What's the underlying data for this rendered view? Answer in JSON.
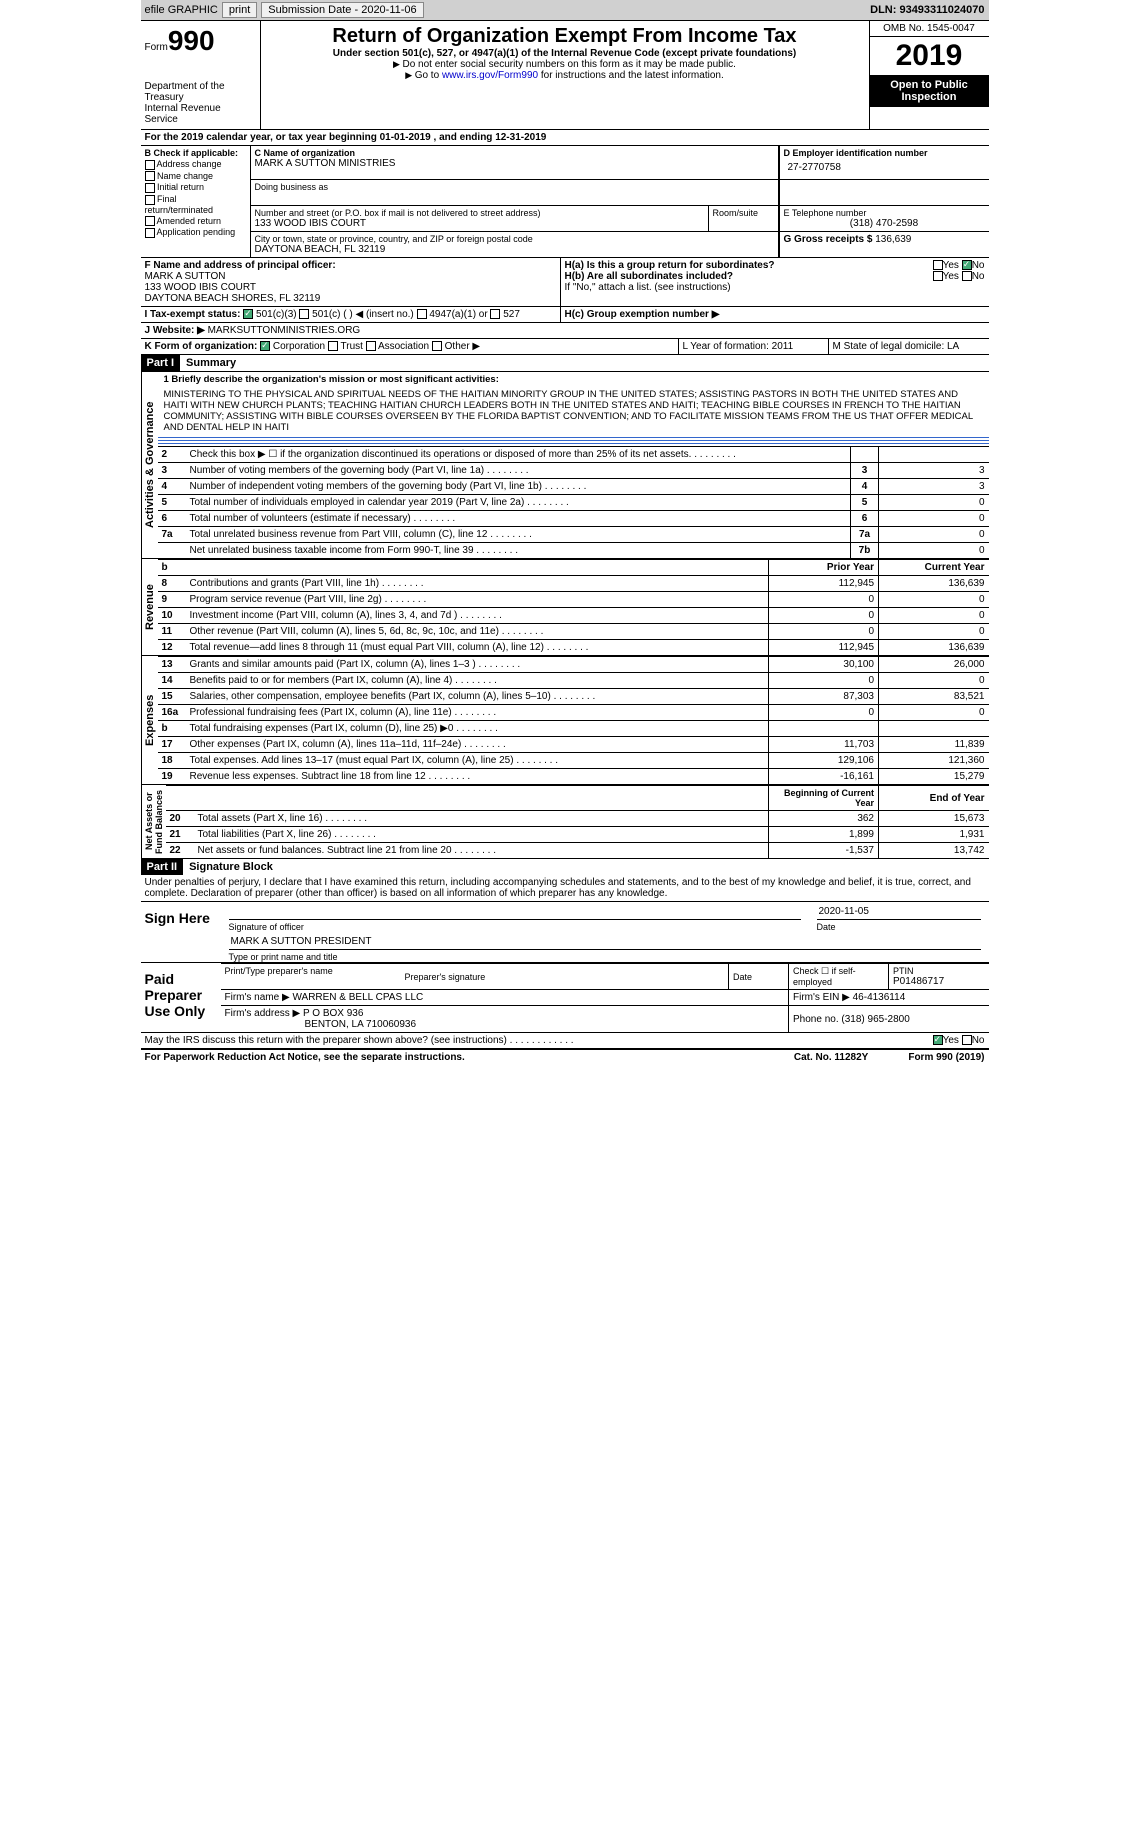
{
  "topbar": {
    "efile": "efile GRAPHIC",
    "print": "print",
    "subdate_label": "Submission Date - ",
    "subdate": "2020-11-06",
    "dln_label": "DLN: ",
    "dln": "93493311024070"
  },
  "header": {
    "form": "Form",
    "num": "990",
    "dept": "Department of the Treasury\nInternal Revenue Service",
    "title": "Return of Organization Exempt From Income Tax",
    "sub": "Under section 501(c), 527, or 4947(a)(1) of the Internal Revenue Code (except private foundations)",
    "note1": "Do not enter social security numbers on this form as it may be made public.",
    "note2_pre": "Go to ",
    "note2_link": "www.irs.gov/Form990",
    "note2_post": " for instructions and the latest information.",
    "omb": "OMB No. 1545-0047",
    "year": "2019",
    "open": "Open to Public Inspection"
  },
  "line_a": "For the 2019 calendar year, or tax year beginning 01-01-2019   , and ending 12-31-2019",
  "box_b": {
    "title": "B Check if applicable:",
    "opts": [
      "Address change",
      "Name change",
      "Initial return",
      "Final return/terminated",
      "Amended return",
      "Application pending"
    ]
  },
  "box_c": {
    "name_lbl": "C Name of organization",
    "name": "MARK A SUTTON MINISTRIES",
    "dba_lbl": "Doing business as",
    "addr_lbl": "Number and street (or P.O. box if mail is not delivered to street address)",
    "room_lbl": "Room/suite",
    "addr": "133 WOOD IBIS COURT",
    "city_lbl": "City or town, state or province, country, and ZIP or foreign postal code",
    "city": "DAYTONA BEACH, FL  32119"
  },
  "box_d": {
    "lbl": "D Employer identification number",
    "val": "27-2770758"
  },
  "box_e": {
    "lbl": "E Telephone number",
    "val": "(318) 470-2598"
  },
  "box_g": {
    "lbl": "G Gross receipts $ ",
    "val": "136,639"
  },
  "box_f": {
    "lbl": "F  Name and address of principal officer:",
    "name": "MARK A SUTTON",
    "addr1": "133 WOOD IBIS COURT",
    "addr2": "DAYTONA BEACH SHORES, FL  32119"
  },
  "box_h": {
    "a": "H(a)  Is this a group return for subordinates?",
    "b": "H(b)  Are all subordinates included?",
    "note": "If \"No,\" attach a list. (see instructions)",
    "c_lbl": "H(c)  Group exemption number ▶",
    "yes": "Yes",
    "no": "No"
  },
  "box_i": "I   Tax-exempt status:",
  "box_j_lbl": "J   Website: ▶",
  "box_j": "MARKSUTTONMINISTRIES.ORG",
  "box_k": "K Form of organization:",
  "k_opts": [
    "Corporation",
    "Trust",
    "Association",
    "Other ▶"
  ],
  "box_l": "L Year of formation: 2011",
  "box_m": "M State of legal domicile: LA",
  "part1": "Part I",
  "part1_t": "Summary",
  "mission_lbl": "1   Briefly describe the organization's mission or most significant activities:",
  "mission": "MINISTERING TO THE PHYSICAL AND SPIRITUAL NEEDS OF THE HAITIAN MINORITY GROUP IN THE UNITED STATES; ASSISTING PASTORS IN BOTH THE UNITED STATES AND HAITI WITH NEW CHURCH PLANTS; TEACHING HAITIAN CHURCH LEADERS BOTH IN THE UNITED STATES AND HAITI; TEACHING BIBLE COURSES IN FRENCH TO THE HAITIAN COMMUNITY; ASSISTING WITH BIBLE COURSES OVERSEEN BY THE FLORIDA BAPTIST CONVENTION; AND TO FACILITATE MISSION TEAMS FROM THE US THAT OFFER MEDICAL AND DENTAL HELP IN HAITI",
  "gov": [
    {
      "n": "2",
      "t": "Check this box ▶ ☐  if the organization discontinued its operations or disposed of more than 25% of its net assets.",
      "b": "",
      "v": ""
    },
    {
      "n": "3",
      "t": "Number of voting members of the governing body (Part VI, line 1a)",
      "b": "3",
      "v": "3"
    },
    {
      "n": "4",
      "t": "Number of independent voting members of the governing body (Part VI, line 1b)",
      "b": "4",
      "v": "3"
    },
    {
      "n": "5",
      "t": "Total number of individuals employed in calendar year 2019 (Part V, line 2a)",
      "b": "5",
      "v": "0"
    },
    {
      "n": "6",
      "t": "Total number of volunteers (estimate if necessary)",
      "b": "6",
      "v": "0"
    },
    {
      "n": "7a",
      "t": "Total unrelated business revenue from Part VIII, column (C), line 12",
      "b": "7a",
      "v": "0"
    },
    {
      "n": "",
      "t": "Net unrelated business taxable income from Form 990-T, line 39",
      "b": "7b",
      "v": "0"
    }
  ],
  "colhdr": {
    "b": "b",
    "py": "Prior Year",
    "cy": "Current Year"
  },
  "rev": [
    {
      "n": "8",
      "t": "Contributions and grants (Part VIII, line 1h)",
      "p": "112,945",
      "c": "136,639"
    },
    {
      "n": "9",
      "t": "Program service revenue (Part VIII, line 2g)",
      "p": "0",
      "c": "0"
    },
    {
      "n": "10",
      "t": "Investment income (Part VIII, column (A), lines 3, 4, and 7d )",
      "p": "0",
      "c": "0"
    },
    {
      "n": "11",
      "t": "Other revenue (Part VIII, column (A), lines 5, 6d, 8c, 9c, 10c, and 11e)",
      "p": "0",
      "c": "0"
    },
    {
      "n": "12",
      "t": "Total revenue—add lines 8 through 11 (must equal Part VIII, column (A), line 12)",
      "p": "112,945",
      "c": "136,639"
    }
  ],
  "exp": [
    {
      "n": "13",
      "t": "Grants and similar amounts paid (Part IX, column (A), lines 1–3 )",
      "p": "30,100",
      "c": "26,000"
    },
    {
      "n": "14",
      "t": "Benefits paid to or for members (Part IX, column (A), line 4)",
      "p": "0",
      "c": "0"
    },
    {
      "n": "15",
      "t": "Salaries, other compensation, employee benefits (Part IX, column (A), lines 5–10)",
      "p": "87,303",
      "c": "83,521"
    },
    {
      "n": "16a",
      "t": "Professional fundraising fees (Part IX, column (A), line 11e)",
      "p": "0",
      "c": "0"
    },
    {
      "n": "b",
      "t": "Total fundraising expenses (Part IX, column (D), line 25) ▶0",
      "p": "",
      "c": ""
    },
    {
      "n": "17",
      "t": "Other expenses (Part IX, column (A), lines 11a–11d, 11f–24e)",
      "p": "11,703",
      "c": "11,839"
    },
    {
      "n": "18",
      "t": "Total expenses. Add lines 13–17 (must equal Part IX, column (A), line 25)",
      "p": "129,106",
      "c": "121,360"
    },
    {
      "n": "19",
      "t": "Revenue less expenses. Subtract line 18 from line 12",
      "p": "-16,161",
      "c": "15,279"
    }
  ],
  "colhdr2": {
    "py": "Beginning of Current Year",
    "cy": "End of Year"
  },
  "net": [
    {
      "n": "20",
      "t": "Total assets (Part X, line 16)",
      "p": "362",
      "c": "15,673"
    },
    {
      "n": "21",
      "t": "Total liabilities (Part X, line 26)",
      "p": "1,899",
      "c": "1,931"
    },
    {
      "n": "22",
      "t": "Net assets or fund balances. Subtract line 21 from line 20",
      "p": "-1,537",
      "c": "13,742"
    }
  ],
  "vtabs": {
    "gov": "Activities & Governance",
    "rev": "Revenue",
    "exp": "Expenses",
    "net": "Net Assets or\nFund Balances"
  },
  "part2": "Part II",
  "part2_t": "Signature Block",
  "perjury": "Under penalties of perjury, I declare that I have examined this return, including accompanying schedules and statements, and to the best of my knowledge and belief, it is true, correct, and complete. Declaration of preparer (other than officer) is based on all information of which preparer has any knowledge.",
  "sign": {
    "here": "Sign Here",
    "sig_lbl": "Signature of officer",
    "date": "2020-11-05",
    "date_lbl": "Date",
    "name": "MARK A SUTTON  PRESIDENT",
    "name_lbl": "Type or print name and title"
  },
  "prep": {
    "title": "Paid Preparer Use Only",
    "pname_lbl": "Print/Type preparer's name",
    "psig_lbl": "Preparer's signature",
    "pdate_lbl": "Date",
    "se_lbl": "Check ☐ if self-employed",
    "ptin_lbl": "PTIN",
    "ptin": "P01486717",
    "firm_lbl": "Firm's name   ▶",
    "firm": "WARREN & BELL CPAS LLC",
    "ein_lbl": "Firm's EIN ▶",
    "ein": "46-4136114",
    "addr_lbl": "Firm's address ▶",
    "addr1": "P O BOX 936",
    "addr2": "BENTON, LA  710060936",
    "phone_lbl": "Phone no.",
    "phone": "(318) 965-2800"
  },
  "discuss": "May the IRS discuss this return with the preparer shown above? (see instructions)",
  "footer": {
    "l": "For Paperwork Reduction Act Notice, see the separate instructions.",
    "c": "Cat. No. 11282Y",
    "r": "Form 990 (2019)"
  },
  "tax_opts": [
    "501(c)(3)",
    "501(c) (  ) ◀ (insert no.)",
    "4947(a)(1) or",
    "527"
  ]
}
